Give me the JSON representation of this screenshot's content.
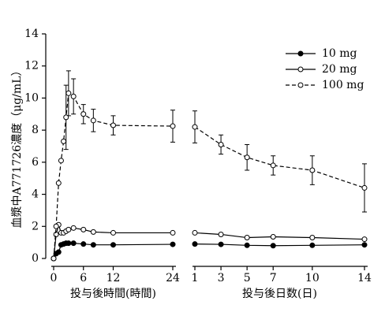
{
  "chart_data": {
    "type": "line",
    "ylabel": "血漿中A771726濃度（μg/mL）",
    "ylim": [
      0,
      14
    ],
    "yticks": [
      0,
      2,
      4,
      6,
      8,
      10,
      12,
      14
    ],
    "legend": "upper right",
    "panels": [
      {
        "xlabel": "投与後時間(時間)",
        "x": [
          0,
          0.5,
          1,
          1.5,
          2,
          2.5,
          3,
          4,
          6,
          8,
          12,
          24
        ],
        "xlim": [
          0,
          24
        ],
        "xticks": [
          0,
          6,
          12,
          24
        ]
      },
      {
        "xlabel": "投与後日数(日)",
        "x": [
          1,
          3,
          5,
          7,
          10,
          14
        ],
        "xlim": [
          1,
          14
        ],
        "xticks": [
          1,
          3,
          5,
          7,
          10,
          14
        ]
      }
    ],
    "series": [
      {
        "name": "10 mg",
        "color": "#000000",
        "marker": "filled",
        "dashed": false,
        "values": [
          [
            0,
            0.3,
            0.4,
            0.85,
            0.9,
            0.95,
            0.95,
            0.95,
            0.9,
            0.85,
            0.85,
            0.88
          ],
          [
            0.9,
            0.88,
            0.82,
            0.8,
            0.82,
            0.85
          ]
        ]
      },
      {
        "name": "20 mg",
        "color": "#000000",
        "marker": "open",
        "dashed": false,
        "values": [
          [
            0,
            1.5,
            2.1,
            1.6,
            1.6,
            1.7,
            1.8,
            1.9,
            1.8,
            1.65,
            1.6,
            1.6
          ],
          [
            1.6,
            1.5,
            1.3,
            1.35,
            1.3,
            1.2
          ]
        ]
      },
      {
        "name": "100 mg",
        "color": "#000000",
        "marker": "open",
        "dashed": true,
        "values": [
          [
            0,
            2.0,
            4.7,
            6.1,
            7.3,
            8.8,
            10.3,
            10.1,
            9.0,
            8.6,
            8.3,
            8.25
          ],
          [
            8.2,
            7.1,
            6.3,
            5.8,
            5.5,
            4.4
          ]
        ],
        "errors": [
          [
            null,
            null,
            null,
            null,
            null,
            2.0,
            1.4,
            1.1,
            0.6,
            0.7,
            0.6,
            1.0
          ],
          [
            1.0,
            0.6,
            0.8,
            0.6,
            0.9,
            1.5
          ]
        ]
      }
    ]
  }
}
